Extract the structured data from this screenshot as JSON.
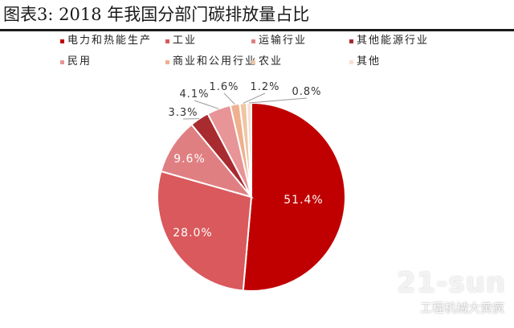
{
  "figure": {
    "title": "图表3:   2018 年我国分部门碳排放量占比"
  },
  "chart_data": {
    "type": "pie",
    "title": "图表3:   2018 年我国分部门碳排放量占比",
    "legend_position": "top",
    "slices": [
      {
        "name": "电力和热能生产",
        "value": 51.4,
        "label": "51.4%",
        "color": "#c00000"
      },
      {
        "name": "工业",
        "value": 28.0,
        "label": "28.0%",
        "color": "#d9595c"
      },
      {
        "name": "运输行业",
        "value": 9.6,
        "label": "9.6%",
        "color": "#e07f82"
      },
      {
        "name": "其他能源行业",
        "value": 3.3,
        "label": "3.3%",
        "color": "#a82b30"
      },
      {
        "name": "民用",
        "value": 4.1,
        "label": "4.1%",
        "color": "#e89598"
      },
      {
        "name": "商业和公用行业",
        "value": 1.6,
        "label": "1.6%",
        "color": "#eeb08e"
      },
      {
        "name": "农业",
        "value": 1.2,
        "label": "1.2%",
        "color": "#f0c5a3"
      },
      {
        "name": "其他",
        "value": 0.8,
        "label": "0.8%",
        "color": "#f7dfd3"
      }
    ]
  },
  "watermark": {
    "brand": "21-sun",
    "caption": "工程机械大黄疯"
  }
}
